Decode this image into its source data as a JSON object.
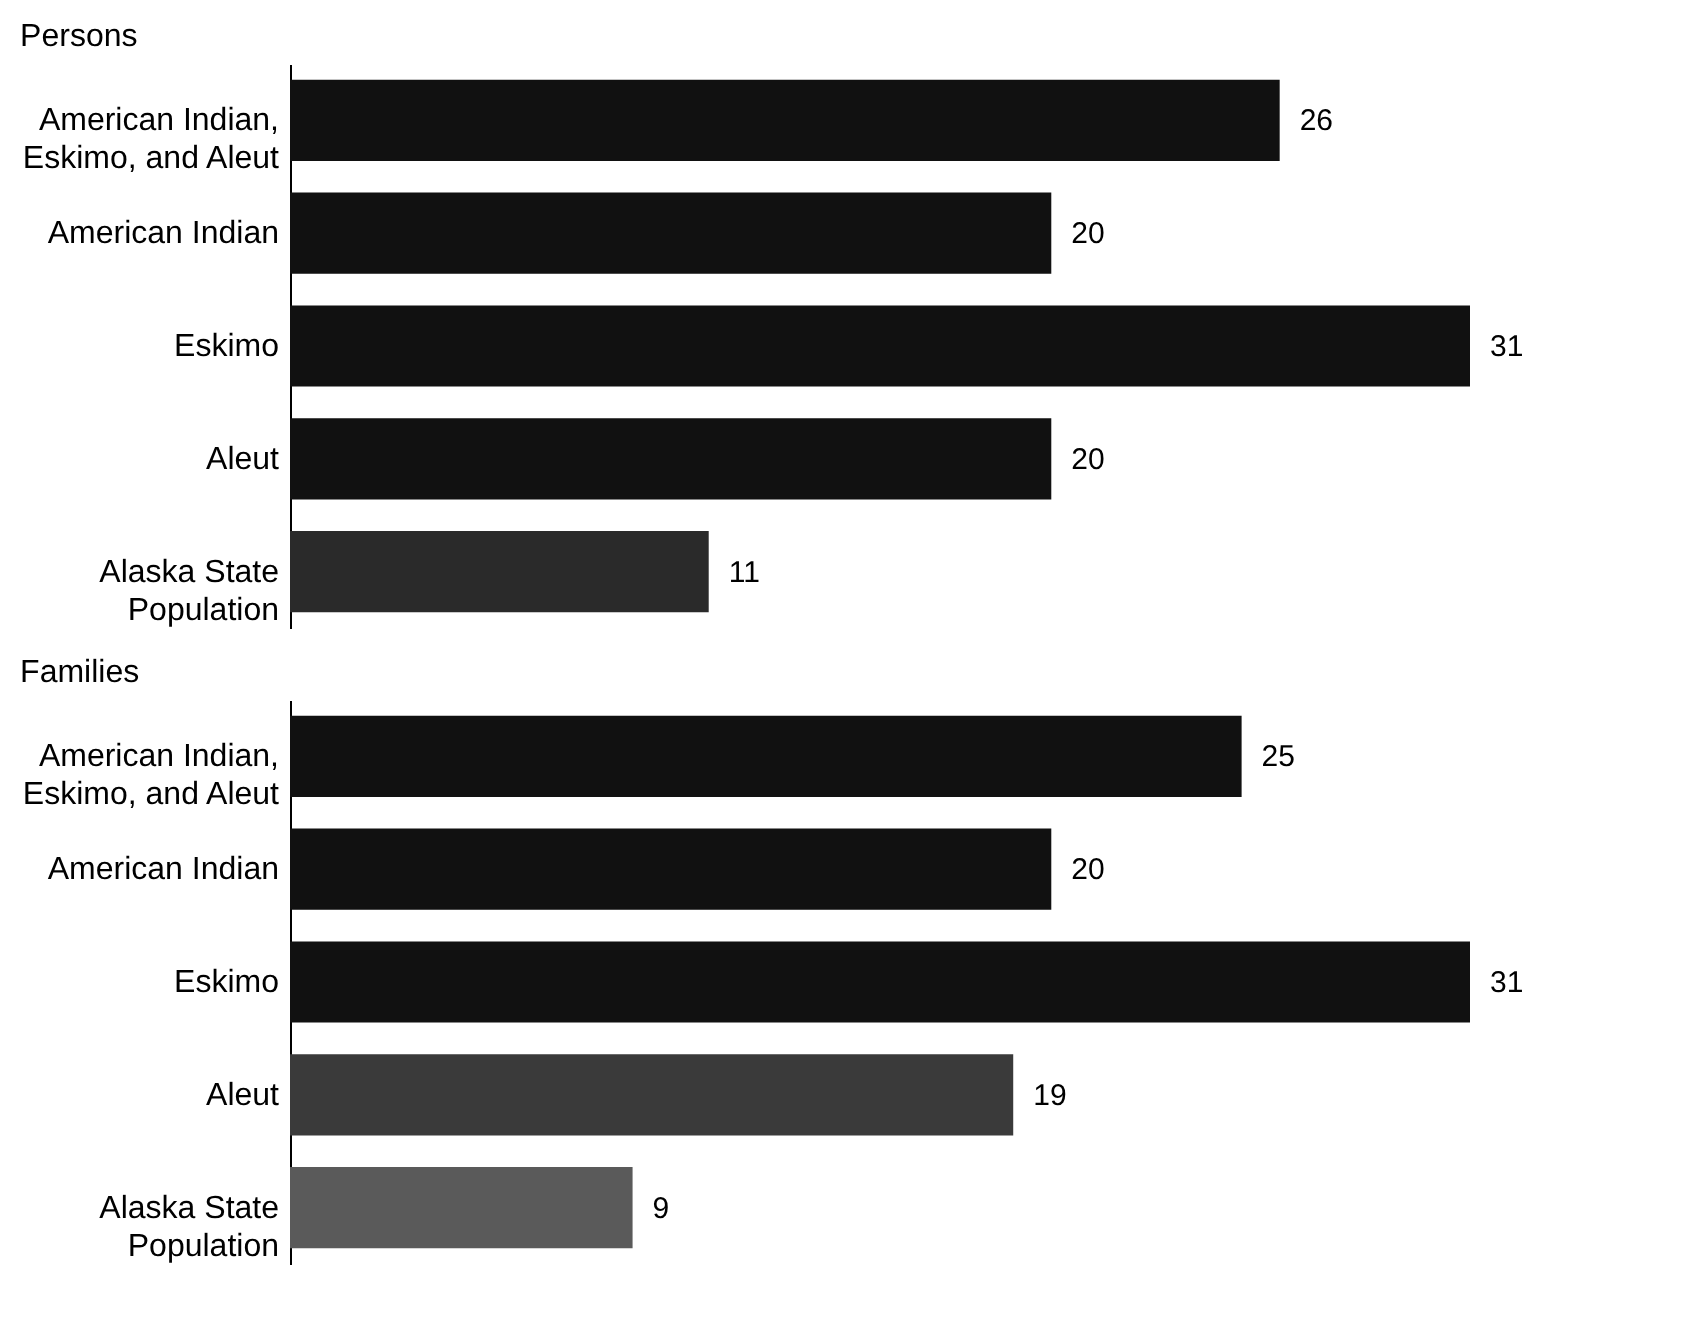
{
  "chart_data": [
    {
      "type": "bar",
      "orientation": "horizontal",
      "title": "Persons",
      "categories": [
        "American Indian, Eskimo, and Aleut",
        "American Indian",
        "Eskimo",
        "Aleut",
        "Alaska State Population"
      ],
      "values": [
        26,
        20,
        31,
        20,
        11
      ],
      "colors": [
        "#111111",
        "#111111",
        "#111111",
        "#111111",
        "#2a2a2a"
      ],
      "data_labels": true
    },
    {
      "type": "bar",
      "orientation": "horizontal",
      "title": "Families",
      "categories": [
        "American Indian, Eskimo, and Aleut",
        "American Indian",
        "Eskimo",
        "Aleut",
        "Alaska State Population"
      ],
      "values": [
        25,
        20,
        31,
        19,
        9
      ],
      "colors": [
        "#111111",
        "#111111",
        "#111111",
        "#3a3a3a",
        "#5a5a5a"
      ],
      "data_labels": true
    }
  ]
}
